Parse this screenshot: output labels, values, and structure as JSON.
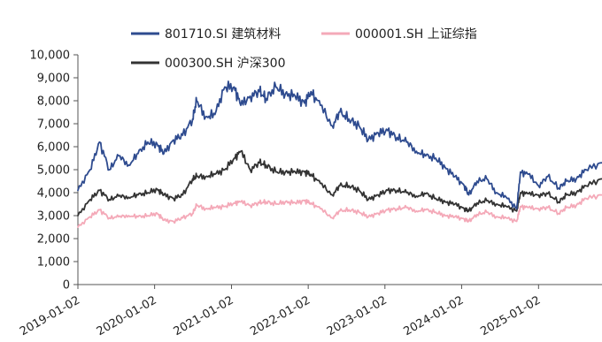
{
  "chart_data": {
    "type": "line",
    "title": "",
    "xlabel": "",
    "ylabel": "",
    "ylim": [
      0,
      10000
    ],
    "yticks": [
      0,
      1000,
      2000,
      3000,
      4000,
      5000,
      6000,
      7000,
      8000,
      9000,
      10000
    ],
    "ytick_labels": [
      "0",
      "1,000",
      "2,000",
      "3,000",
      "4,000",
      "5,000",
      "6,000",
      "7,000",
      "8,000",
      "9,000",
      "10,000"
    ],
    "xticks": [
      "2019-01-02",
      "2020-01-02",
      "2021-01-02",
      "2022-01-02",
      "2023-01-02",
      "2024-01-02",
      "2025-01-02"
    ],
    "xlim": [
      "2019-01-02",
      "2025-10-31"
    ],
    "grid": false,
    "legend_position": "top",
    "series": [
      {
        "name": "801710.SI 建筑材料",
        "color": "#2E4B8F",
        "x": [
          "2019-01-02",
          "2019-03-01",
          "2019-04-15",
          "2019-06-01",
          "2019-07-15",
          "2019-09-01",
          "2019-10-15",
          "2019-12-01",
          "2020-01-15",
          "2020-02-15",
          "2020-04-01",
          "2020-05-15",
          "2020-07-01",
          "2020-07-20",
          "2020-09-01",
          "2020-10-15",
          "2020-12-01",
          "2021-01-15",
          "2021-02-15",
          "2021-04-01",
          "2021-05-15",
          "2021-06-15",
          "2021-08-01",
          "2021-09-15",
          "2021-11-01",
          "2021-12-15",
          "2022-01-15",
          "2022-03-01",
          "2022-04-27",
          "2022-06-01",
          "2022-07-15",
          "2022-09-01",
          "2022-10-15",
          "2022-12-01",
          "2023-01-15",
          "2023-03-01",
          "2023-04-15",
          "2023-06-01",
          "2023-07-15",
          "2023-09-01",
          "2023-10-15",
          "2023-12-01",
          "2024-01-15",
          "2024-02-05",
          "2024-03-15",
          "2024-05-01",
          "2024-06-15",
          "2024-08-01",
          "2024-09-20",
          "2024-10-08",
          "2024-11-15",
          "2025-01-02",
          "2025-02-15",
          "2025-04-08",
          "2025-05-15",
          "2025-07-01",
          "2025-08-15",
          "2025-10-31"
        ],
        "values": [
          4100,
          5000,
          6200,
          5000,
          5600,
          5200,
          5700,
          6200,
          6100,
          5700,
          6300,
          6500,
          7200,
          8000,
          7300,
          7400,
          8600,
          8600,
          7800,
          8200,
          8400,
          8100,
          8600,
          8300,
          8200,
          7900,
          8400,
          7800,
          6900,
          7500,
          7200,
          6900,
          6300,
          6600,
          6700,
          6400,
          6200,
          5800,
          5600,
          5500,
          5100,
          4700,
          4300,
          3900,
          4500,
          4600,
          4000,
          3800,
          3300,
          4900,
          4800,
          4300,
          4700,
          4200,
          4500,
          4600,
          5000,
          5300
        ]
      },
      {
        "name": "000001.SH 上证综指",
        "color": "#F4A9B8",
        "x": [
          "2019-01-02",
          "2019-03-01",
          "2019-04-15",
          "2019-06-01",
          "2019-07-15",
          "2019-09-01",
          "2019-10-15",
          "2019-12-01",
          "2020-01-15",
          "2020-02-15",
          "2020-04-01",
          "2020-05-15",
          "2020-07-01",
          "2020-07-20",
          "2020-09-01",
          "2020-10-15",
          "2020-12-01",
          "2021-01-15",
          "2021-02-15",
          "2021-04-01",
          "2021-05-15",
          "2021-06-15",
          "2021-08-01",
          "2021-09-15",
          "2021-11-01",
          "2021-12-15",
          "2022-01-15",
          "2022-03-01",
          "2022-04-27",
          "2022-06-01",
          "2022-07-15",
          "2022-09-01",
          "2022-10-15",
          "2022-12-01",
          "2023-01-15",
          "2023-03-01",
          "2023-04-15",
          "2023-06-01",
          "2023-07-15",
          "2023-09-01",
          "2023-10-15",
          "2023-12-01",
          "2024-01-15",
          "2024-02-05",
          "2024-03-15",
          "2024-05-01",
          "2024-06-15",
          "2024-08-01",
          "2024-09-20",
          "2024-10-08",
          "2024-11-15",
          "2025-01-02",
          "2025-02-15",
          "2025-04-08",
          "2025-05-15",
          "2025-07-01",
          "2025-08-15",
          "2025-10-31"
        ],
        "values": [
          2500,
          2950,
          3250,
          2900,
          2950,
          3000,
          2950,
          3000,
          3100,
          2800,
          2750,
          2900,
          3100,
          3450,
          3300,
          3350,
          3400,
          3550,
          3600,
          3450,
          3550,
          3600,
          3500,
          3600,
          3550,
          3650,
          3550,
          3300,
          2900,
          3200,
          3250,
          3150,
          2950,
          3100,
          3250,
          3300,
          3350,
          3200,
          3250,
          3150,
          3000,
          2950,
          2850,
          2750,
          3050,
          3150,
          2950,
          2900,
          2750,
          3400,
          3350,
          3300,
          3350,
          3100,
          3350,
          3450,
          3750,
          3900
        ]
      },
      {
        "name": "000300.SH 沪深300",
        "color": "#333333",
        "x": [
          "2019-01-02",
          "2019-03-01",
          "2019-04-15",
          "2019-06-01",
          "2019-07-15",
          "2019-09-01",
          "2019-10-15",
          "2019-12-01",
          "2020-01-15",
          "2020-02-15",
          "2020-04-01",
          "2020-05-15",
          "2020-07-01",
          "2020-07-20",
          "2020-09-01",
          "2020-10-15",
          "2020-12-01",
          "2021-01-15",
          "2021-02-15",
          "2021-04-01",
          "2021-05-15",
          "2021-06-15",
          "2021-08-01",
          "2021-09-15",
          "2021-11-01",
          "2021-12-15",
          "2022-01-15",
          "2022-03-01",
          "2022-04-27",
          "2022-06-01",
          "2022-07-15",
          "2022-09-01",
          "2022-10-15",
          "2022-12-01",
          "2023-01-15",
          "2023-03-01",
          "2023-04-15",
          "2023-06-01",
          "2023-07-15",
          "2023-09-01",
          "2023-10-15",
          "2023-12-01",
          "2024-01-15",
          "2024-02-05",
          "2024-03-15",
          "2024-05-01",
          "2024-06-15",
          "2024-08-01",
          "2024-09-20",
          "2024-10-08",
          "2024-11-15",
          "2025-01-02",
          "2025-02-15",
          "2025-04-08",
          "2025-05-15",
          "2025-07-01",
          "2025-08-15",
          "2025-10-31"
        ],
        "values": [
          3000,
          3700,
          4100,
          3700,
          3850,
          3800,
          3900,
          4000,
          4150,
          3900,
          3750,
          3900,
          4600,
          4700,
          4700,
          4800,
          5000,
          5500,
          5800,
          5000,
          5300,
          5200,
          4900,
          4900,
          4900,
          4900,
          4800,
          4400,
          3900,
          4300,
          4300,
          4100,
          3700,
          3900,
          4100,
          4100,
          4000,
          3850,
          3950,
          3750,
          3600,
          3500,
          3300,
          3200,
          3550,
          3650,
          3500,
          3400,
          3200,
          4000,
          3950,
          3900,
          3950,
          3600,
          3900,
          4000,
          4300,
          4600
        ]
      }
    ]
  }
}
